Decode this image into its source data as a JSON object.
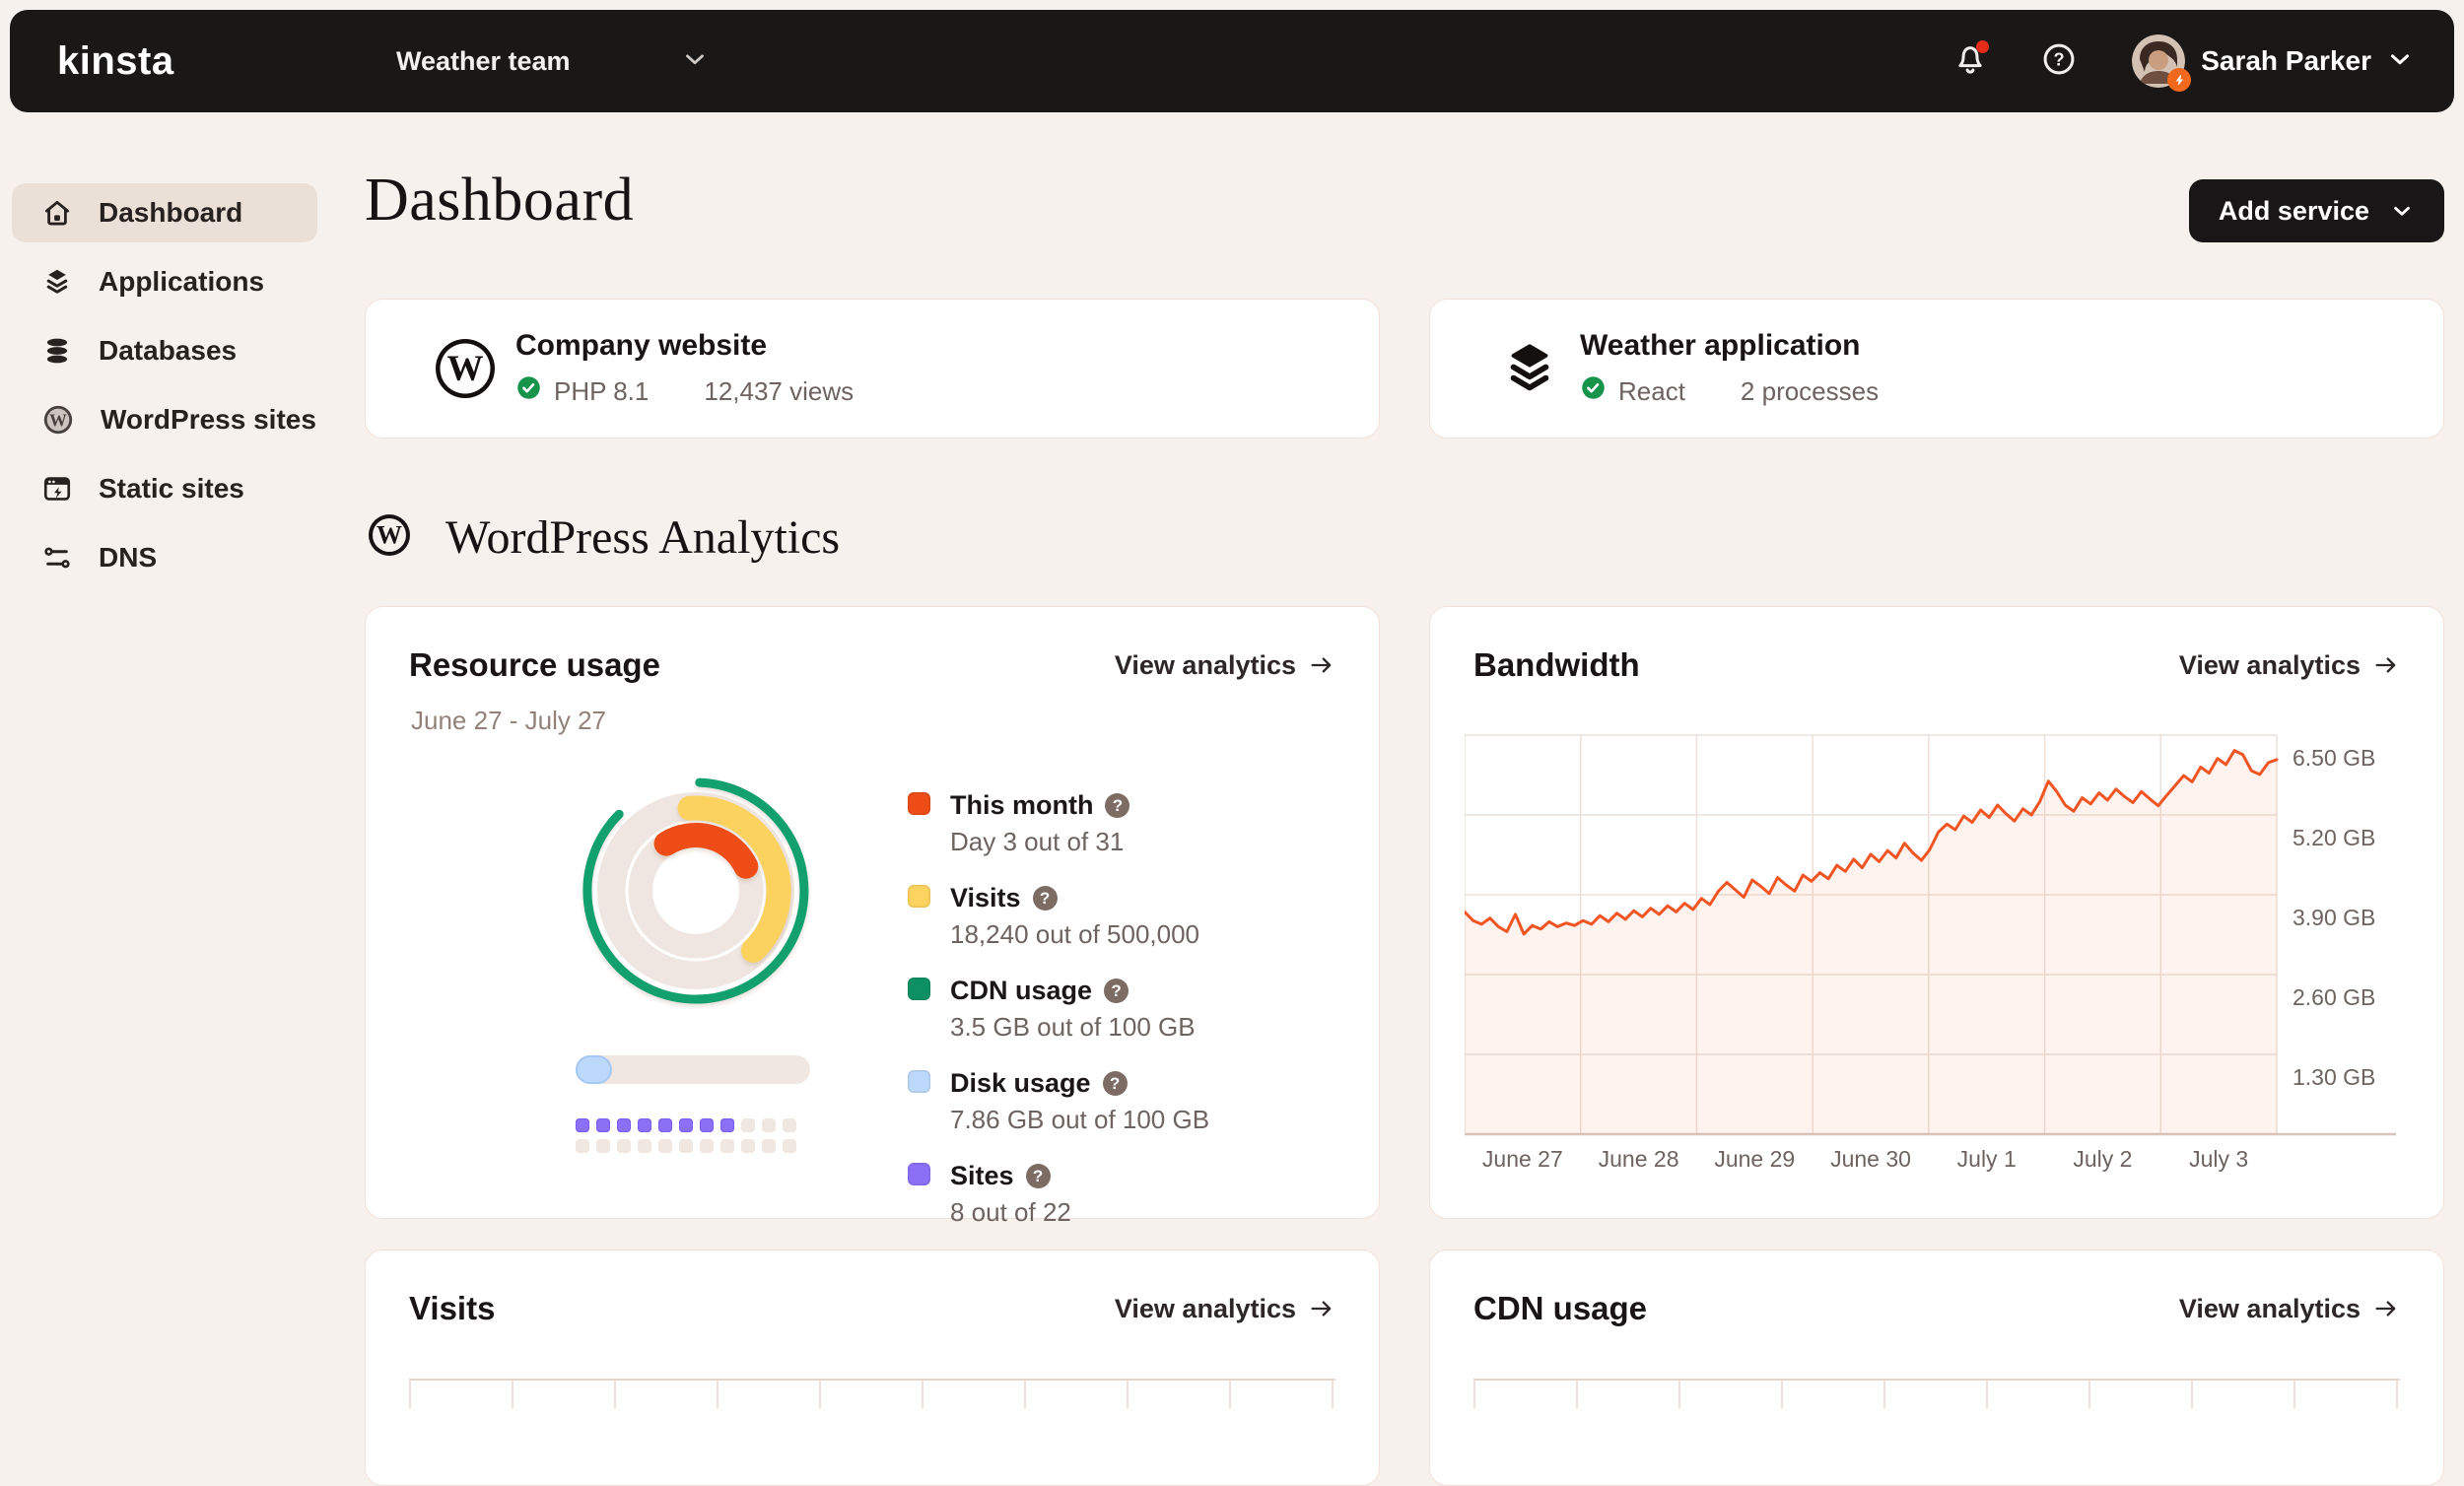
{
  "topbar": {
    "logo": "kinsta",
    "team_selector": {
      "label": "Weather team"
    },
    "user": {
      "name": "Sarah Parker"
    },
    "icons": [
      "bell-icon",
      "help-icon",
      "avatar",
      "chevron-down-icon"
    ],
    "notification_has_unread": true
  },
  "sidebar": {
    "items": [
      {
        "label": "Dashboard",
        "icon": "home-icon",
        "active": true
      },
      {
        "label": "Applications",
        "icon": "layers-icon",
        "active": false
      },
      {
        "label": "Databases",
        "icon": "database-icon",
        "active": false
      },
      {
        "label": "WordPress sites",
        "icon": "wordpress-icon",
        "active": false
      },
      {
        "label": "Static sites",
        "icon": "static-site-icon",
        "active": false
      },
      {
        "label": "DNS",
        "icon": "dns-icon",
        "active": false
      }
    ]
  },
  "page": {
    "title": "Dashboard",
    "add_service_label": "Add service"
  },
  "services": [
    {
      "name": "Company website",
      "icon": "wordpress-logo",
      "status_icon": "check-circle-icon",
      "runtime": "PHP 8.1",
      "metric": "12,437 views"
    },
    {
      "name": "Weather application",
      "icon": "layers-dark-icon",
      "status_icon": "check-circle-icon",
      "runtime": "React",
      "metric": "2 processes"
    }
  ],
  "analytics_section": {
    "title": "WordPress Analytics",
    "icon": "wordpress-icon"
  },
  "cards": {
    "resource_usage": {
      "title": "Resource usage",
      "link_label": "View analytics",
      "date_range": "June 27 - July 27",
      "legend": [
        {
          "label": "This month",
          "value": "Day 3 out of 31",
          "color": "#ee4d17",
          "help": true
        },
        {
          "label": "Visits",
          "value": "18,240 out of 500,000",
          "color": "#fcd35e",
          "help": true
        },
        {
          "label": "CDN usage",
          "value": "3.5 GB out of 100 GB",
          "color": "#0d9064",
          "help": true
        },
        {
          "label": "Disk usage",
          "value": "7.86 GB out of 100 GB",
          "color": "#bcd9fb",
          "help": true
        },
        {
          "label": "Sites",
          "value": "8 out of 22",
          "color": "#8b70f6",
          "help": true
        }
      ],
      "disk_bar": {
        "fraction_display": 0.155,
        "track_color": "#f0e7e1",
        "fill_color": "#bcd9fb"
      },
      "sites_grid": {
        "filled": 8,
        "total": 22,
        "per_row": 11,
        "on_color": "#8b70f6",
        "off_color": "#f0e7e1"
      }
    },
    "bandwidth": {
      "title": "Bandwidth",
      "link_label": "View analytics"
    },
    "visits": {
      "title": "Visits",
      "link_label": "View analytics"
    },
    "cdn_usage": {
      "title": "CDN usage",
      "link_label": "View analytics"
    }
  },
  "chart_data": [
    {
      "type": "donut",
      "title": "Resource usage",
      "period": "June 27 - July 27",
      "metrics": [
        {
          "label": "This month",
          "current": 3,
          "total": 31,
          "unit": "days"
        },
        {
          "label": "Visits",
          "current": 18240,
          "total": 500000,
          "unit": "visits"
        },
        {
          "label": "CDN usage",
          "current": 3.5,
          "total": 100,
          "unit": "GB"
        },
        {
          "label": "Disk usage",
          "current": 7.86,
          "total": 100,
          "unit": "GB"
        },
        {
          "label": "Sites",
          "current": 8,
          "total": 22,
          "unit": "sites"
        }
      ],
      "rings": [
        {
          "metric": "CDN usage",
          "color": "#12a06e",
          "radius": 110,
          "width": 9,
          "start_deg": 2,
          "end_deg": 315
        },
        {
          "metric": "Visits",
          "color": "#fbd25e",
          "radius": 84,
          "width": 25,
          "start_deg": -4,
          "end_deg": 136
        },
        {
          "metric": "This month",
          "color": "#ee4d17",
          "radius": 56.5,
          "width": 25,
          "start_deg": -32,
          "end_deg": 64
        }
      ],
      "track_color": "#efe6e1"
    },
    {
      "type": "line",
      "title": "Bandwidth",
      "x_labels": [
        "June 27",
        "June 28",
        "June 29",
        "June 30",
        "July 1",
        "July 2",
        "July 3"
      ],
      "y_ticks": [
        {
          "value": 6.5,
          "label": "6.50 GB"
        },
        {
          "value": 5.2,
          "label": "5.20 GB"
        },
        {
          "value": 3.9,
          "label": "3.90 GB"
        },
        {
          "value": 2.6,
          "label": "2.60 GB"
        },
        {
          "value": 1.3,
          "label": "1.30 GB"
        }
      ],
      "ylim": [
        0,
        6.5
      ],
      "grid": true,
      "legend_position": "none",
      "series": [
        {
          "name": "Bandwidth (GB)",
          "color": "#f15523",
          "values": [
            3.62,
            3.48,
            3.42,
            3.52,
            3.38,
            3.3,
            3.58,
            3.26,
            3.4,
            3.34,
            3.46,
            3.38,
            3.44,
            3.4,
            3.48,
            3.42,
            3.56,
            3.46,
            3.6,
            3.5,
            3.64,
            3.54,
            3.68,
            3.58,
            3.72,
            3.62,
            3.76,
            3.66,
            3.84,
            3.74,
            3.96,
            4.1,
            3.98,
            3.86,
            4.14,
            4.04,
            3.92,
            4.18,
            4.06,
            3.96,
            4.22,
            4.12,
            4.26,
            4.16,
            4.38,
            4.28,
            4.48,
            4.34,
            4.56,
            4.44,
            4.62,
            4.5,
            4.74,
            4.58,
            4.46,
            4.64,
            4.92,
            5.05,
            4.96,
            5.18,
            5.08,
            5.28,
            5.16,
            5.36,
            5.22,
            5.1,
            5.3,
            5.2,
            5.42,
            5.75,
            5.58,
            5.36,
            5.26,
            5.48,
            5.38,
            5.56,
            5.44,
            5.62,
            5.5,
            5.4,
            5.58,
            5.46,
            5.35,
            5.52,
            5.68,
            5.84,
            5.74,
            5.98,
            5.88,
            6.12,
            6.02,
            6.25,
            6.18,
            5.92,
            5.86,
            6.05,
            6.1
          ]
        }
      ]
    }
  ]
}
